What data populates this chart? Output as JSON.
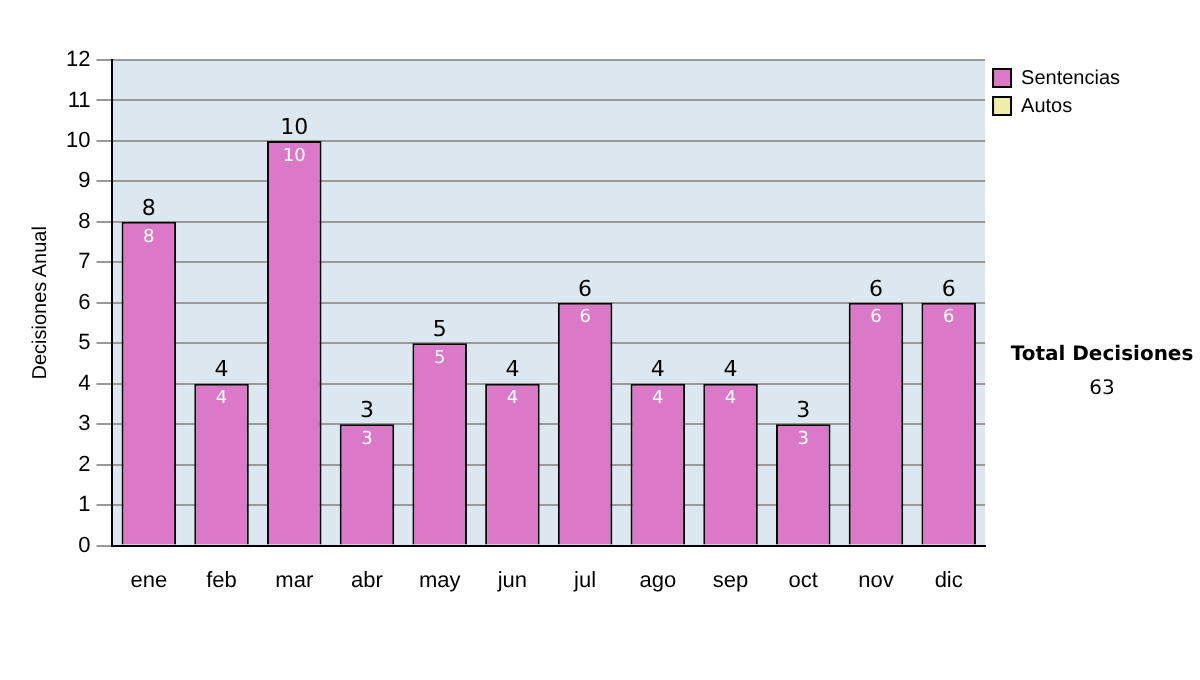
{
  "chart_data": {
    "type": "bar",
    "stacked": true,
    "ylabel": "Decisiones Anual",
    "categories": [
      "ene",
      "feb",
      "mar",
      "abr",
      "may",
      "jun",
      "jul",
      "ago",
      "sep",
      "oct",
      "nov",
      "dic"
    ],
    "series": [
      {
        "name": "Sentencias",
        "color": "#dc78c8",
        "values": [
          8,
          4,
          10,
          3,
          5,
          4,
          6,
          4,
          4,
          3,
          6,
          6
        ],
        "value_labels": [
          "8",
          "4",
          "10",
          "3",
          "5",
          "4",
          "6",
          "4",
          "4",
          "3",
          "6",
          "6"
        ]
      },
      {
        "name": "Autos",
        "color": "#eeeeaa",
        "values": [
          0,
          0,
          0,
          0,
          0,
          0,
          0,
          0,
          0,
          0,
          0,
          0
        ]
      }
    ],
    "totals": [
      "8",
      "4",
      "10",
      "3",
      "5",
      "4",
      "6",
      "4",
      "4",
      "3",
      "6",
      "6"
    ],
    "ylim": [
      0,
      12
    ],
    "yticks": [
      0,
      1,
      2,
      3,
      4,
      5,
      6,
      7,
      8,
      9,
      10,
      11,
      12
    ],
    "grid": "y",
    "legend": "right",
    "annotations": [
      "Total Decisiones",
      "63"
    ]
  }
}
